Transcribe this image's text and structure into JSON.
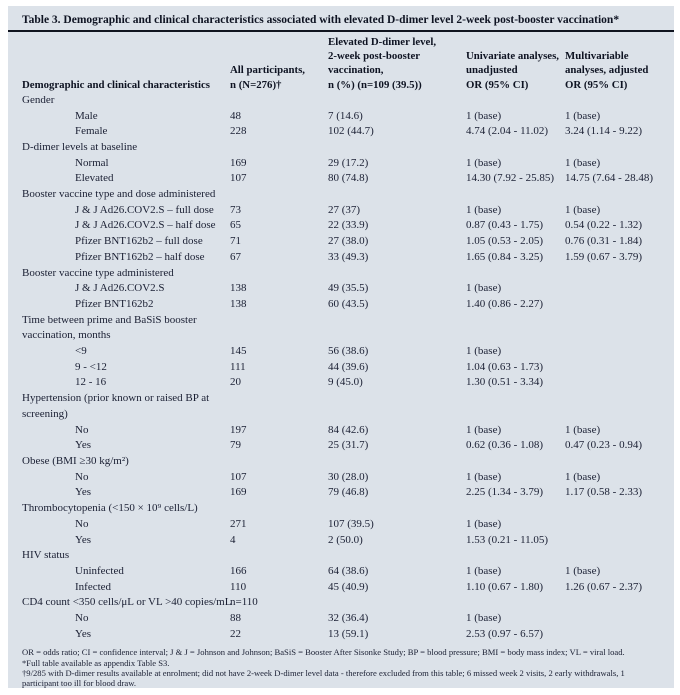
{
  "colors": {
    "panel_background": "#dce2e9",
    "text": "#1a1f33",
    "heading_text": "#0e1322",
    "title_rule": "#10141f"
  },
  "title": "Table 3. Demographic and clinical characteristics associated with elevated D-dimer level 2-week post-booster vaccination*",
  "columns": [
    "Demographic and clinical characteristics",
    "All participants,\nn (N=276)†",
    "Elevated D-dimer level,\n2-week post-booster\nvaccination,\nn (%) (n=109 (39.5))",
    "Univariate analyses,\nunadjusted\nOR (95% CI)",
    "Multivariable\nanalyses, adjusted\nOR (95% CI)"
  ],
  "sections": [
    {
      "header": "Gender",
      "note": "",
      "rows": [
        {
          "label": "Male",
          "all": "48",
          "elevated": "7 (14.6)",
          "univariate": "1 (base)",
          "multivariable": "1 (base)"
        },
        {
          "label": "Female",
          "all": "228",
          "elevated": "102 (44.7)",
          "univariate": "4.74 (2.04 - 11.02)",
          "multivariable": "3.24 (1.14 - 9.22)"
        }
      ]
    },
    {
      "header": "D-dimer levels at baseline",
      "note": "",
      "rows": [
        {
          "label": "Normal",
          "all": "169",
          "elevated": "29 (17.2)",
          "univariate": "1 (base)",
          "multivariable": "1 (base)"
        },
        {
          "label": "Elevated",
          "all": "107",
          "elevated": "80 (74.8)",
          "univariate": "14.30 (7.92 - 25.85)",
          "multivariable": "14.75 (7.64 - 28.48)"
        }
      ]
    },
    {
      "header": "Booster vaccine type and dose administered",
      "note": "",
      "rows": [
        {
          "label": "J & J Ad26.COV2.S – full dose",
          "all": "73",
          "elevated": "27 (37)",
          "univariate": "1 (base)",
          "multivariable": "1 (base)"
        },
        {
          "label": "J & J Ad26.COV2.S – half dose",
          "all": "65",
          "elevated": "22 (33.9)",
          "univariate": "0.87 (0.43 - 1.75)",
          "multivariable": "0.54 (0.22 - 1.32)"
        },
        {
          "label": "Pfizer BNT162b2 – full dose",
          "all": "71",
          "elevated": "27 (38.0)",
          "univariate": "1.05 (0.53 - 2.05)",
          "multivariable": "0.76 (0.31 - 1.84)"
        },
        {
          "label": "Pfizer BNT162b2 – half dose",
          "all": "67",
          "elevated": "33 (49.3)",
          "univariate": "1.65 (0.84 - 3.25)",
          "multivariable": "1.59 (0.67 - 3.79)"
        }
      ]
    },
    {
      "header": "Booster vaccine type administered",
      "note": "",
      "rows": [
        {
          "label": "J & J Ad26.COV2.S",
          "all": "138",
          "elevated": "49 (35.5)",
          "univariate": "1 (base)",
          "multivariable": ""
        },
        {
          "label": "Pfizer BNT162b2",
          "all": "138",
          "elevated": "60 (43.5)",
          "univariate": "1.40 (0.86 - 2.27)",
          "multivariable": ""
        }
      ]
    },
    {
      "header": "Time between prime and BaSiS booster\nvaccination, months",
      "note": "",
      "rows": [
        {
          "label": "<9",
          "all": "145",
          "elevated": "56 (38.6)",
          "univariate": "1 (base)",
          "multivariable": ""
        },
        {
          "label": "9 - <12",
          "all": "111",
          "elevated": "44 (39.6)",
          "univariate": "1.04 (0.63 - 1.73)",
          "multivariable": ""
        },
        {
          "label": "12 - 16",
          "all": "20",
          "elevated": "9 (45.0)",
          "univariate": "1.30 (0.51 - 3.34)",
          "multivariable": ""
        }
      ]
    },
    {
      "header": "Hypertension (prior known or raised BP at\nscreening)",
      "note": "",
      "rows": [
        {
          "label": "No",
          "all": "197",
          "elevated": "84 (42.6)",
          "univariate": "1 (base)",
          "multivariable": "1 (base)"
        },
        {
          "label": "Yes",
          "all": "79",
          "elevated": "25 (31.7)",
          "univariate": "0.62 (0.36 - 1.08)",
          "multivariable": "0.47 (0.23 - 0.94)"
        }
      ]
    },
    {
      "header": "Obese (BMI ≥30 kg/m²)",
      "note": "",
      "rows": [
        {
          "label": "No",
          "all": "107",
          "elevated": "30 (28.0)",
          "univariate": "1 (base)",
          "multivariable": "1 (base)"
        },
        {
          "label": "Yes",
          "all": "169",
          "elevated": "79 (46.8)",
          "univariate": "2.25 (1.34 - 3.79)",
          "multivariable": "1.17 (0.58 - 2.33)"
        }
      ]
    },
    {
      "header": "Thrombocytopenia (<150 × 10⁹ cells/L)",
      "note": "",
      "rows": [
        {
          "label": "No",
          "all": "271",
          "elevated": "107 (39.5)",
          "univariate": "1 (base)",
          "multivariable": ""
        },
        {
          "label": "Yes",
          "all": "4",
          "elevated": "2 (50.0)",
          "univariate": "1.53 (0.21 - 11.05)",
          "multivariable": ""
        }
      ]
    },
    {
      "header": "HIV status",
      "note": "",
      "rows": [
        {
          "label": "Uninfected",
          "all": "166",
          "elevated": "64 (38.6)",
          "univariate": "1 (base)",
          "multivariable": "1 (base)"
        },
        {
          "label": "Infected",
          "all": "110",
          "elevated": "45 (40.9)",
          "univariate": "1.10 (0.67 - 1.80)",
          "multivariable": "1.26 (0.67 - 2.37)"
        }
      ]
    },
    {
      "header": "CD4 count <350 cells/μL or VL >40 copies/mL",
      "note": "n=110",
      "rows": [
        {
          "label": "No",
          "all": "88",
          "elevated": "32 (36.4)",
          "univariate": "1 (base)",
          "multivariable": ""
        },
        {
          "label": "Yes",
          "all": "22",
          "elevated": "13 (59.1)",
          "univariate": "2.53 (0.97 - 6.57)",
          "multivariable": ""
        }
      ]
    }
  ],
  "footnotes": [
    "OR = odds ratio; CI = confidence interval; J & J = Johnson and Johnson; BaSiS = Booster After Sisonke Study; BP = blood pressure; BMI = body mass index; VL = viral load.",
    "*Full table available as appendix Table S3.",
    "†9/285 with D-dimer results available at enrolment; did not have 2-week D-dimer level data - therefore excluded from this table; 6 missed week 2 visits, 2 early withdrawals, 1 participant too ill for blood draw."
  ]
}
